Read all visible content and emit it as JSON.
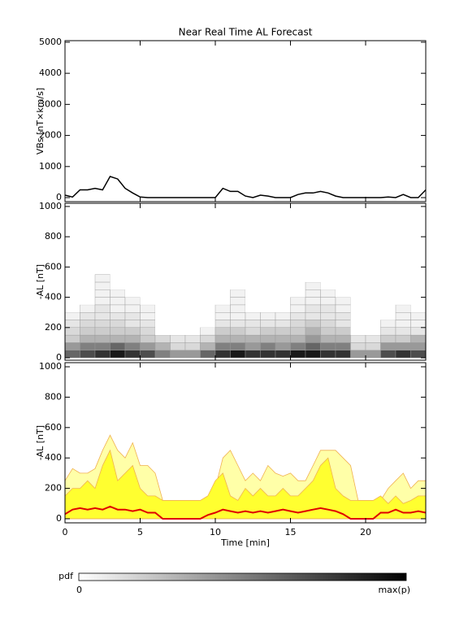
{
  "chart_data": [
    {
      "type": "line",
      "ylabel": "VBs [nT×km/s]",
      "color": "#000000",
      "xlim": [
        0,
        24
      ],
      "xticks": [
        0,
        5,
        10,
        15,
        20
      ],
      "ylim": [
        -130,
        5050
      ],
      "yticks": [
        0,
        1000,
        2000,
        3000,
        4000,
        5000
      ],
      "x": [
        0,
        0.5,
        1,
        1.5,
        2,
        2.5,
        3,
        3.5,
        4,
        4.5,
        5,
        5.5,
        6,
        6.5,
        7,
        7.5,
        8,
        8.5,
        9,
        9.5,
        10,
        10.5,
        11,
        11.5,
        12,
        12.5,
        13,
        13.5,
        14,
        14.5,
        15,
        15.5,
        16,
        16.5,
        17,
        17.5,
        18,
        18.5,
        19,
        19.5,
        20,
        20.5,
        21,
        21.5,
        22,
        22.5,
        23,
        23.5,
        24
      ],
      "values": [
        80,
        20,
        250,
        250,
        300,
        250,
        680,
        600,
        300,
        150,
        20,
        0,
        0,
        0,
        0,
        0,
        0,
        0,
        0,
        0,
        0,
        300,
        200,
        200,
        50,
        0,
        80,
        50,
        0,
        0,
        0,
        100,
        150,
        150,
        200,
        150,
        50,
        0,
        0,
        0,
        0,
        0,
        0,
        20,
        0,
        100,
        0,
        0,
        250
      ]
    },
    {
      "type": "heatmap",
      "ylabel": "-AL [nT]",
      "xlim": [
        0,
        24
      ],
      "xticks": [
        0,
        5,
        10,
        15,
        20
      ],
      "ylim": [
        -16,
        1021
      ],
      "yticks": [
        0,
        200,
        400,
        600,
        800,
        1000
      ],
      "xbins": [
        0,
        1,
        2,
        3,
        4,
        5,
        6,
        7,
        8,
        9,
        10,
        11,
        12,
        13,
        14,
        15,
        16,
        17,
        18,
        19,
        20,
        21,
        22,
        23,
        24
      ],
      "ybins": [
        0,
        50,
        100,
        150,
        200,
        250,
        300,
        350,
        400,
        450,
        500,
        550
      ],
      "values": [
        [
          0.6,
          0.4,
          0.2,
          0.15,
          0.1,
          0.05,
          0,
          0,
          0,
          0,
          0
        ],
        [
          0.7,
          0.5,
          0.3,
          0.2,
          0.15,
          0.1,
          0.05,
          0,
          0,
          0,
          0
        ],
        [
          0.8,
          0.5,
          0.3,
          0.2,
          0.15,
          0.1,
          0.1,
          0.05,
          0.05,
          0.05,
          0.05
        ],
        [
          0.9,
          0.6,
          0.3,
          0.2,
          0.15,
          0.1,
          0.05,
          0.05,
          0.05,
          0,
          0
        ],
        [
          0.8,
          0.5,
          0.3,
          0.2,
          0.1,
          0.1,
          0.05,
          0.05,
          0,
          0,
          0
        ],
        [
          0.7,
          0.4,
          0.2,
          0.15,
          0.1,
          0.05,
          0.05,
          0,
          0,
          0,
          0
        ],
        [
          0.5,
          0.3,
          0.15,
          0,
          0,
          0,
          0,
          0,
          0,
          0,
          0
        ],
        [
          0.4,
          0.15,
          0.1,
          0,
          0,
          0,
          0,
          0,
          0,
          0,
          0
        ],
        [
          0.4,
          0.15,
          0.1,
          0,
          0,
          0,
          0,
          0,
          0,
          0,
          0
        ],
        [
          0.6,
          0.3,
          0.15,
          0.05,
          0,
          0,
          0,
          0,
          0,
          0,
          0
        ],
        [
          0.8,
          0.5,
          0.3,
          0.2,
          0.1,
          0.05,
          0.05,
          0,
          0,
          0,
          0
        ],
        [
          0.9,
          0.5,
          0.3,
          0.2,
          0.1,
          0.05,
          0.05,
          0.05,
          0.05,
          0,
          0
        ],
        [
          0.8,
          0.4,
          0.3,
          0.15,
          0.1,
          0.05,
          0,
          0,
          0,
          0,
          0
        ],
        [
          0.8,
          0.5,
          0.3,
          0.2,
          0.1,
          0.05,
          0,
          0,
          0,
          0,
          0
        ],
        [
          0.8,
          0.4,
          0.3,
          0.2,
          0.1,
          0.05,
          0,
          0,
          0,
          0,
          0
        ],
        [
          0.9,
          0.5,
          0.3,
          0.2,
          0.15,
          0.1,
          0.05,
          0.05,
          0,
          0,
          0
        ],
        [
          0.9,
          0.6,
          0.4,
          0.3,
          0.2,
          0.1,
          0.1,
          0.05,
          0.05,
          0.05,
          0
        ],
        [
          0.8,
          0.5,
          0.3,
          0.2,
          0.15,
          0.1,
          0.1,
          0.05,
          0.05,
          0,
          0
        ],
        [
          0.8,
          0.5,
          0.3,
          0.2,
          0.1,
          0.1,
          0.05,
          0.05,
          0,
          0,
          0
        ],
        [
          0.4,
          0.15,
          0.1,
          0,
          0,
          0,
          0,
          0,
          0,
          0,
          0
        ],
        [
          0.4,
          0.15,
          0.1,
          0,
          0,
          0,
          0,
          0,
          0,
          0,
          0
        ],
        [
          0.7,
          0.4,
          0.2,
          0.1,
          0.05,
          0,
          0,
          0,
          0,
          0,
          0
        ],
        [
          0.8,
          0.4,
          0.2,
          0.1,
          0.05,
          0.05,
          0.05,
          0,
          0,
          0,
          0
        ],
        [
          0.7,
          0.4,
          0.3,
          0.1,
          0.05,
          0.05,
          0,
          0,
          0,
          0,
          0
        ]
      ]
    },
    {
      "type": "area",
      "ylabel": "-AL [nT]",
      "xlabel": "Time [min]",
      "xlim": [
        0,
        24
      ],
      "xticks": [
        0,
        5,
        10,
        15,
        20
      ],
      "ylim": [
        -27,
        1027
      ],
      "yticks": [
        0,
        200,
        400,
        600,
        800,
        1000
      ],
      "x": [
        0,
        0.5,
        1,
        1.5,
        2,
        2.5,
        3,
        3.5,
        4,
        4.5,
        5,
        5.5,
        6,
        6.5,
        7,
        7.5,
        8,
        8.5,
        9,
        9.5,
        10,
        10.5,
        11,
        11.5,
        12,
        12.5,
        13,
        13.5,
        14,
        14.5,
        15,
        15.5,
        16,
        16.5,
        17,
        17.5,
        18,
        18.5,
        19,
        19.5,
        20,
        20.5,
        21,
        21.5,
        22,
        22.5,
        23,
        23.5,
        24
      ],
      "series": [
        {
          "color": "#ffffa8",
          "edge_color": "#f0b050",
          "fill": true,
          "values": [
            250,
            330,
            300,
            300,
            330,
            450,
            550,
            450,
            400,
            500,
            350,
            350,
            300,
            120,
            120,
            120,
            120,
            120,
            120,
            120,
            200,
            400,
            450,
            350,
            250,
            300,
            250,
            350,
            300,
            280,
            300,
            250,
            250,
            350,
            450,
            450,
            450,
            400,
            350,
            120,
            120,
            120,
            120,
            200,
            250,
            300,
            200,
            250,
            250
          ]
        },
        {
          "color": "#ffff30",
          "edge_color": "#f0b050",
          "fill": true,
          "values": [
            150,
            200,
            200,
            250,
            200,
            350,
            450,
            250,
            300,
            350,
            200,
            150,
            150,
            120,
            120,
            120,
            120,
            120,
            120,
            150,
            250,
            300,
            150,
            120,
            200,
            150,
            200,
            150,
            150,
            200,
            150,
            150,
            200,
            250,
            350,
            400,
            200,
            150,
            120,
            120,
            120,
            120,
            150,
            100,
            150,
            100,
            120,
            150,
            150
          ]
        },
        {
          "color": "#e00000",
          "fill": false,
          "values": [
            30,
            60,
            70,
            60,
            70,
            60,
            80,
            60,
            60,
            50,
            60,
            40,
            40,
            0,
            0,
            0,
            0,
            0,
            0,
            25,
            40,
            60,
            50,
            40,
            50,
            40,
            50,
            40,
            50,
            60,
            50,
            40,
            50,
            60,
            70,
            60,
            50,
            30,
            0,
            0,
            0,
            0,
            40,
            40,
            60,
            40,
            40,
            50,
            40
          ]
        }
      ]
    }
  ],
  "title": "Near Real Time AL Forecast",
  "colorbar": {
    "label": "pdf",
    "min_label": "0",
    "max_label": "max(p)"
  }
}
